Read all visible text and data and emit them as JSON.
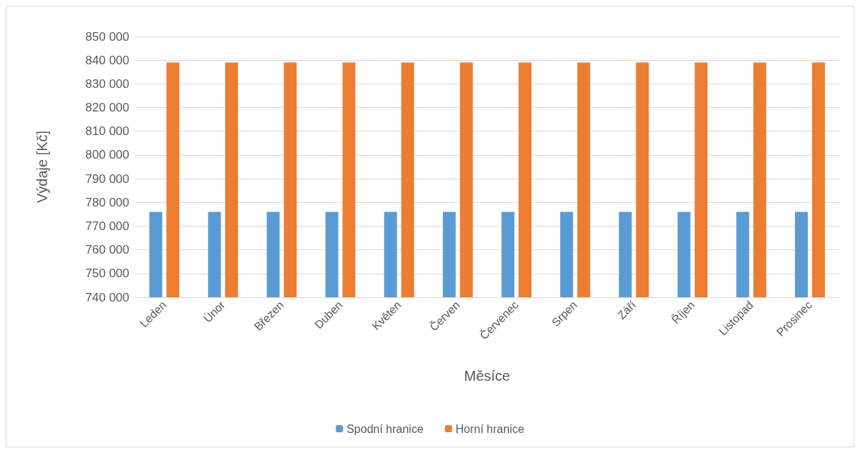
{
  "chart_data": {
    "type": "bar",
    "xlabel": "Měsíce",
    "ylabel": "Výdaje [Kč]",
    "categories": [
      "Leden",
      "Únor",
      "Březen",
      "Duben",
      "Květen",
      "Červen",
      "Červenec",
      "Srpen",
      "Září",
      "Říjen",
      "Listopad",
      "Prosinec"
    ],
    "series": [
      {
        "name": "Spodní hranice",
        "color": "#5b9bd5",
        "values": [
          776000,
          776000,
          776000,
          776000,
          776000,
          776000,
          776000,
          776000,
          776000,
          776000,
          776000,
          776000
        ]
      },
      {
        "name": "Horní hranice",
        "color": "#ed7d31",
        "values": [
          839000,
          839000,
          839000,
          839000,
          839000,
          839000,
          839000,
          839000,
          839000,
          839000,
          839000,
          839000
        ]
      }
    ],
    "ylim": [
      740000,
      850000
    ],
    "yticks": [
      740000,
      750000,
      760000,
      770000,
      780000,
      790000,
      800000,
      810000,
      820000,
      830000,
      840000,
      850000
    ],
    "grid": "y",
    "legend": "bottom"
  }
}
